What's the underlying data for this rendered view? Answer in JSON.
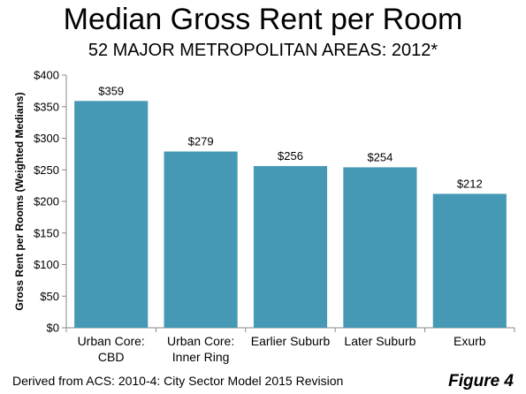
{
  "chart_data": {
    "type": "bar",
    "title": "Median Gross Rent per Room",
    "subtitle": "52 MAJOR METROPOLITAN AREAS: 2012*",
    "xlabel": "",
    "ylabel": "Gross Rent per Rooms (Weighted Medians)",
    "categories": [
      [
        "Urban Core:",
        "CBD"
      ],
      [
        "Urban Core:",
        "Inner Ring"
      ],
      [
        "Earlier Suburb"
      ],
      [
        "Later Suburb"
      ],
      [
        "Exurb"
      ]
    ],
    "values": [
      359,
      279,
      256,
      254,
      212
    ],
    "value_labels": [
      "$359",
      "$279",
      "$256",
      "$254",
      "$212"
    ],
    "ylim": [
      0,
      400
    ],
    "yticks": [
      0,
      50,
      100,
      150,
      200,
      250,
      300,
      350,
      400
    ],
    "ytick_labels": [
      "$0",
      "$50",
      "$100",
      "$150",
      "$200",
      "$250",
      "$300",
      "$350",
      "$400"
    ],
    "grid": false,
    "legend": "none",
    "bar_color": "#4599B4"
  },
  "footnote": "Derived from ACS: 2010-4: City Sector Model 2015 Revision",
  "figure_label": "Figure 4"
}
